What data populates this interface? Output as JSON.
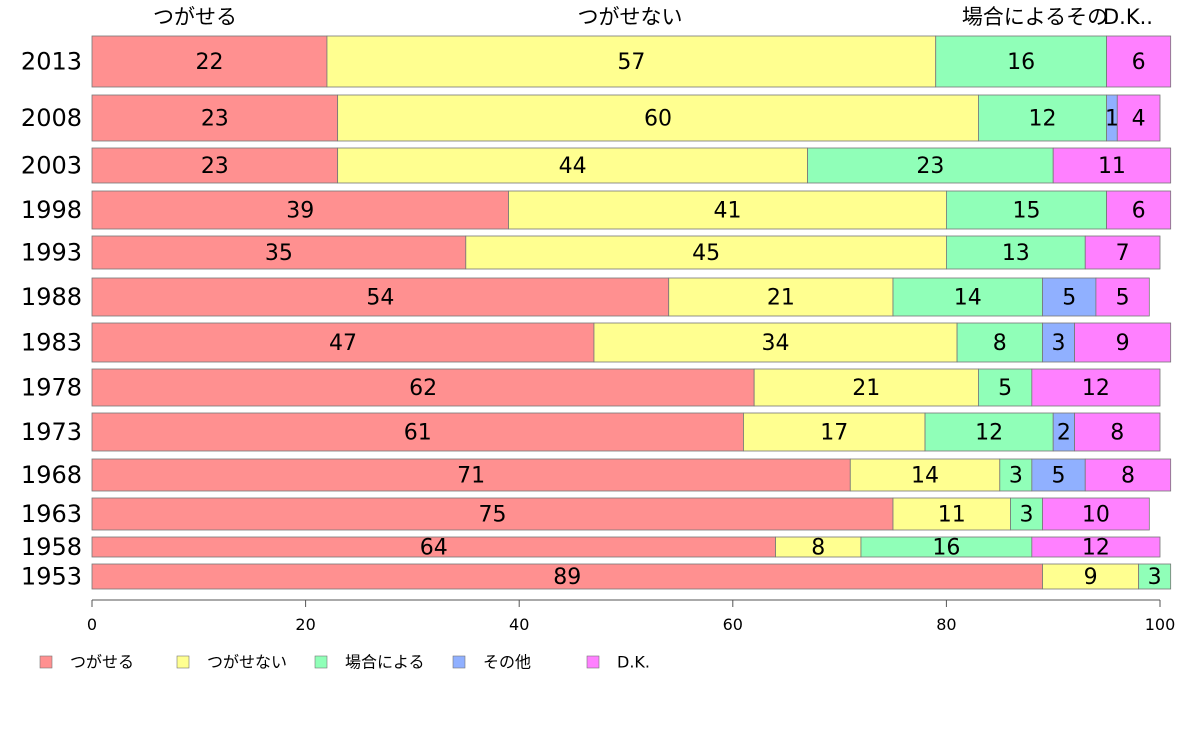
{
  "chart_data": {
    "type": "bar",
    "orientation": "horizontal",
    "stacked": true,
    "xlim": [
      0,
      100
    ],
    "xticks": [
      0,
      20,
      40,
      60,
      80,
      100
    ],
    "grid": false,
    "legend_position": "bottom-left",
    "top_labels": [
      "つがせる",
      "つがせない",
      "場合によるその",
      "D.K.."
    ],
    "categories": [
      "2013",
      "2008",
      "2003",
      "1998",
      "1993",
      "1988",
      "1983",
      "1978",
      "1973",
      "1968",
      "1963",
      "1958",
      "1953"
    ],
    "series": [
      {
        "name": "つがせる",
        "color": "#ff9090",
        "values": [
          22,
          23,
          23,
          39,
          35,
          54,
          47,
          62,
          61,
          71,
          75,
          64,
          89
        ]
      },
      {
        "name": "つがせない",
        "color": "#ffff90",
        "values": [
          57,
          60,
          44,
          41,
          45,
          21,
          34,
          21,
          17,
          14,
          11,
          8,
          9
        ]
      },
      {
        "name": "場合による",
        "color": "#90ffb8",
        "values": [
          16,
          12,
          23,
          15,
          13,
          14,
          8,
          5,
          12,
          3,
          3,
          16,
          3
        ]
      },
      {
        "name": "その他",
        "color": "#90b0ff",
        "values": [
          0,
          1,
          0,
          0,
          0,
          5,
          3,
          0,
          2,
          5,
          0,
          0,
          0
        ]
      },
      {
        "name": "D.K.",
        "color": "#ff80ff",
        "values": [
          6,
          4,
          11,
          6,
          7,
          5,
          9,
          12,
          8,
          8,
          10,
          12,
          0
        ]
      }
    ]
  }
}
